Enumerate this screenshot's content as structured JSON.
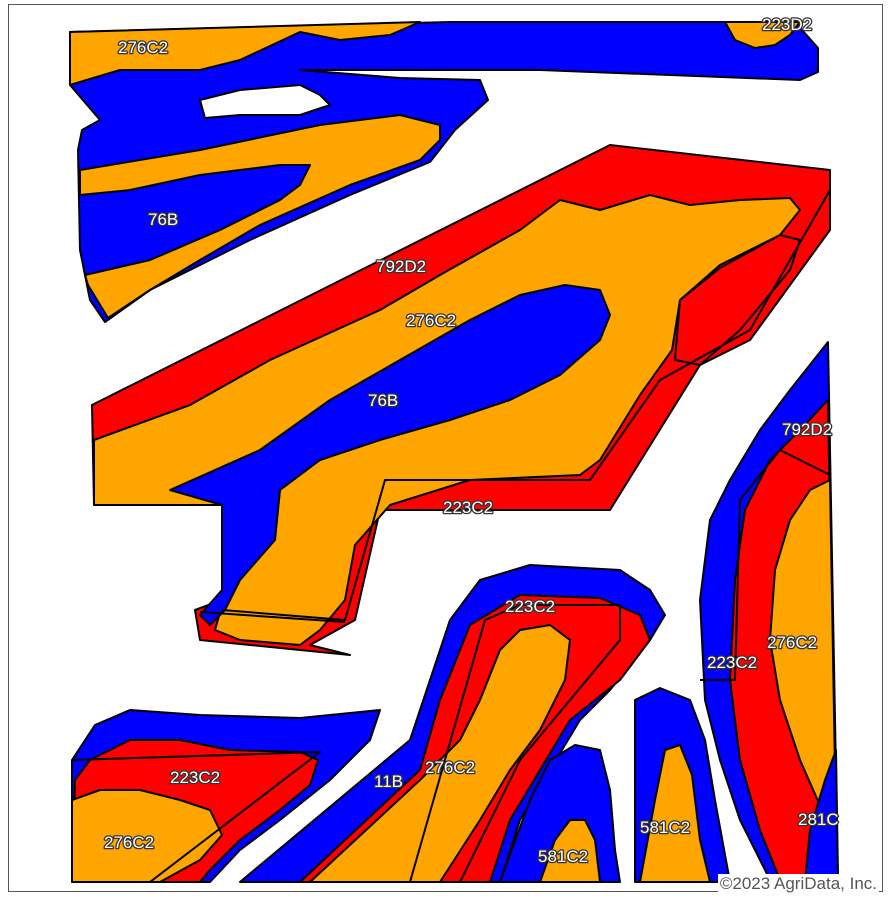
{
  "colors": {
    "blue": "#0000ff",
    "orange": "#ffa500",
    "red": "#ff0000",
    "outline": "#000000"
  },
  "labels": {
    "top_left": "276C2",
    "top_right": "223D2",
    "left_blue": "76B",
    "center_red": "792D2",
    "center_orange": "276C2",
    "center_blue": "76B",
    "center_bottom": "223C2",
    "right_red": "792D2",
    "right_orange": "276C2",
    "right_mid": "223C2",
    "right_bottom": "281C",
    "mid_top": "223C2",
    "mid_orange": "276C2",
    "mid_blue": "11B",
    "bl_red": "223C2",
    "bl_orange": "276C2",
    "small_left": "581C2",
    "small_right": "581C2"
  },
  "copyright": "©2023 AgriData, Inc."
}
